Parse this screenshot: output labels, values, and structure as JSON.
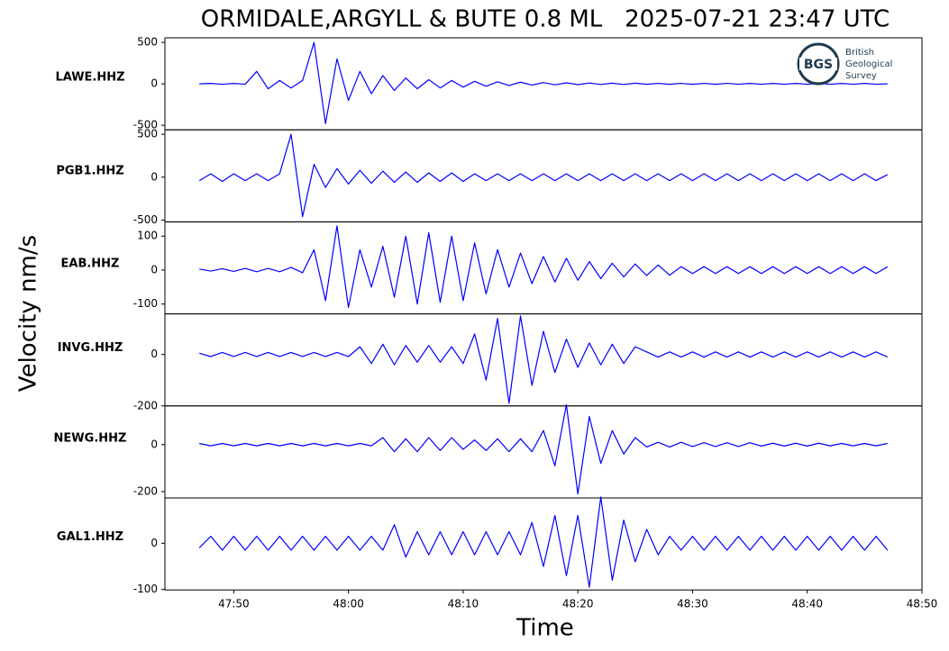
{
  "title": "ORMIDALE,ARGYLL & BUTE 0.8 ML   2025-07-21 23:47 UTC",
  "y_label": "Velocity nm/s",
  "x_label": "Time",
  "logo": {
    "mark": "BGS",
    "lines": [
      "British",
      "Geological",
      "Survey"
    ]
  },
  "chart_data": [
    {
      "type": "line",
      "x": [
        47,
        48,
        49,
        50,
        51,
        52,
        53,
        54,
        55,
        56,
        57,
        58,
        59,
        60,
        61,
        62,
        63,
        64,
        65,
        66,
        67,
        68,
        69,
        70,
        71,
        72,
        73,
        74,
        75,
        76,
        77,
        78,
        79,
        80,
        81,
        82,
        83,
        84,
        85,
        86,
        87,
        88,
        89,
        90,
        91,
        92,
        93,
        94,
        95,
        96,
        97,
        98,
        99,
        100,
        101,
        102,
        103,
        104,
        105,
        106,
        107
      ],
      "series": [
        {
          "name": "LAWE.HHZ",
          "color": "#0000ff",
          "values": [
            0,
            5,
            -5,
            5,
            -5,
            150,
            -60,
            40,
            -50,
            40,
            500,
            -480,
            300,
            -200,
            150,
            -120,
            100,
            -80,
            70,
            -60,
            50,
            -50,
            40,
            -40,
            30,
            -30,
            25,
            -20,
            20,
            -15,
            15,
            -12,
            12,
            -10,
            10,
            -8,
            8,
            -8,
            8,
            -6,
            6,
            -6,
            6,
            -6,
            6,
            -6,
            6,
            -5,
            5,
            -5,
            5,
            -5,
            5,
            -5,
            5,
            -5,
            5,
            -5,
            5,
            -5,
            0
          ]
        }
      ],
      "xlim": [
        44,
        110
      ],
      "ylim": [
        -555,
        555
      ],
      "yticks": [
        -500,
        0,
        500
      ]
    },
    {
      "type": "line",
      "x": [
        47,
        48,
        49,
        50,
        51,
        52,
        53,
        54,
        55,
        56,
        57,
        58,
        59,
        60,
        61,
        62,
        63,
        64,
        65,
        66,
        67,
        68,
        69,
        70,
        71,
        72,
        73,
        74,
        75,
        76,
        77,
        78,
        79,
        80,
        81,
        82,
        83,
        84,
        85,
        86,
        87,
        88,
        89,
        90,
        91,
        92,
        93,
        94,
        95,
        96,
        97,
        98,
        99,
        100,
        101,
        102,
        103,
        104,
        105,
        106,
        107
      ],
      "series": [
        {
          "name": "PGB1.HHZ",
          "color": "#0000ff",
          "values": [
            -40,
            40,
            -50,
            40,
            -40,
            40,
            -40,
            40,
            500,
            -460,
            150,
            -120,
            100,
            -80,
            80,
            -70,
            70,
            -60,
            60,
            -60,
            50,
            -50,
            50,
            -50,
            40,
            -40,
            40,
            -40,
            40,
            -40,
            40,
            -40,
            40,
            -40,
            40,
            -40,
            40,
            -40,
            40,
            -40,
            40,
            -40,
            40,
            -40,
            40,
            -40,
            40,
            -40,
            40,
            -40,
            40,
            -40,
            40,
            -40,
            40,
            -40,
            40,
            -40,
            40,
            -40,
            30
          ]
        }
      ],
      "xlim": [
        44,
        110
      ],
      "ylim": [
        -521,
        552
      ],
      "yticks": [
        -500,
        0,
        500
      ]
    },
    {
      "type": "line",
      "x": [
        47,
        48,
        49,
        50,
        51,
        52,
        53,
        54,
        55,
        56,
        57,
        58,
        59,
        60,
        61,
        62,
        63,
        64,
        65,
        66,
        67,
        68,
        69,
        70,
        71,
        72,
        73,
        74,
        75,
        76,
        77,
        78,
        79,
        80,
        81,
        82,
        83,
        84,
        85,
        86,
        87,
        88,
        89,
        90,
        91,
        92,
        93,
        94,
        95,
        96,
        97,
        98,
        99,
        100,
        101,
        102,
        103,
        104,
        105,
        106,
        107
      ],
      "series": [
        {
          "name": "EAB.HHZ",
          "color": "#0000ff",
          "values": [
            3,
            -3,
            4,
            -4,
            5,
            -5,
            5,
            -5,
            8,
            -8,
            60,
            -90,
            130,
            -110,
            60,
            -50,
            70,
            -80,
            100,
            -100,
            110,
            -95,
            100,
            -90,
            80,
            -70,
            60,
            -50,
            50,
            -40,
            40,
            -35,
            35,
            -30,
            25,
            -25,
            20,
            -20,
            18,
            -16,
            15,
            -15,
            10,
            -10,
            10,
            -10,
            10,
            -10,
            10,
            -10,
            10,
            -10,
            10,
            -10,
            10,
            -10,
            10,
            -10,
            10,
            -10,
            10
          ]
        }
      ],
      "xlim": [
        44,
        110
      ],
      "ylim": [
        -129,
        142
      ],
      "yticks": [
        -100,
        0,
        100
      ]
    },
    {
      "type": "line",
      "x": [
        47,
        48,
        49,
        50,
        51,
        52,
        53,
        54,
        55,
        56,
        57,
        58,
        59,
        60,
        61,
        62,
        63,
        64,
        65,
        66,
        67,
        68,
        69,
        70,
        71,
        72,
        73,
        74,
        75,
        76,
        77,
        78,
        79,
        80,
        81,
        82,
        83,
        84,
        85,
        86,
        87,
        88,
        89,
        90,
        91,
        92,
        93,
        94,
        95,
        96,
        97,
        98,
        99,
        100,
        101,
        102,
        103,
        104,
        105,
        106,
        107
      ],
      "series": [
        {
          "name": "INVG.HHZ",
          "color": "#0000ff",
          "values": [
            5,
            -8,
            8,
            -8,
            8,
            -8,
            8,
            -8,
            8,
            -8,
            8,
            -8,
            8,
            -8,
            30,
            -35,
            40,
            -40,
            35,
            -30,
            35,
            -30,
            30,
            -35,
            80,
            -100,
            140,
            -190,
            150,
            -120,
            90,
            -70,
            60,
            -50,
            45,
            -40,
            40,
            -35,
            30,
            10,
            -10,
            10,
            -10,
            10,
            -10,
            10,
            -10,
            10,
            -10,
            10,
            -10,
            10,
            -10,
            10,
            -10,
            10,
            -10,
            10,
            -10,
            10,
            -10
          ]
        }
      ],
      "xlim": [
        44,
        110
      ],
      "ylim": [
        -200,
        158
      ],
      "yticks": [
        -200,
        0
      ]
    },
    {
      "type": "line",
      "x": [
        47,
        48,
        49,
        50,
        51,
        52,
        53,
        54,
        55,
        56,
        57,
        58,
        59,
        60,
        61,
        62,
        63,
        64,
        65,
        66,
        67,
        68,
        69,
        70,
        71,
        72,
        73,
        74,
        75,
        76,
        77,
        78,
        79,
        80,
        81,
        82,
        83,
        84,
        85,
        86,
        87,
        88,
        89,
        90,
        91,
        92,
        93,
        94,
        95,
        96,
        97,
        98,
        99,
        100,
        101,
        102,
        103,
        104,
        105,
        106,
        107
      ],
      "series": [
        {
          "name": "NEWG.HHZ",
          "color": "#0000ff",
          "values": [
            5,
            -5,
            5,
            -5,
            5,
            -5,
            5,
            -5,
            5,
            -5,
            5,
            -5,
            5,
            -5,
            5,
            -5,
            30,
            -30,
            25,
            -30,
            30,
            -25,
            30,
            -20,
            20,
            -25,
            25,
            -30,
            25,
            -30,
            60,
            -90,
            170,
            -210,
            120,
            -80,
            60,
            -40,
            30,
            -10,
            10,
            -10,
            10,
            -8,
            8,
            -8,
            8,
            -8,
            8,
            -6,
            6,
            -6,
            6,
            -6,
            6,
            -5,
            5,
            -5,
            5,
            -5,
            5
          ]
        }
      ],
      "xlim": [
        44,
        110
      ],
      "ylim": [
        -227,
        165
      ],
      "yticks": [
        -200,
        0
      ]
    },
    {
      "type": "line",
      "x": [
        47,
        48,
        49,
        50,
        51,
        52,
        53,
        54,
        55,
        56,
        57,
        58,
        59,
        60,
        61,
        62,
        63,
        64,
        65,
        66,
        67,
        68,
        69,
        70,
        71,
        72,
        73,
        74,
        75,
        76,
        77,
        78,
        79,
        80,
        81,
        82,
        83,
        84,
        85,
        86,
        87,
        88,
        89,
        90,
        91,
        92,
        93,
        94,
        95,
        96,
        97,
        98,
        99,
        100,
        101,
        102,
        103,
        104,
        105,
        106,
        107
      ],
      "series": [
        {
          "name": "GAL1.HHZ",
          "color": "#0000ff",
          "values": [
            -10,
            15,
            -15,
            15,
            -15,
            15,
            -15,
            15,
            -15,
            15,
            -15,
            15,
            -15,
            15,
            -15,
            15,
            -15,
            40,
            -30,
            25,
            -25,
            25,
            -25,
            25,
            -25,
            25,
            -25,
            25,
            -25,
            45,
            -50,
            60,
            -70,
            60,
            -95,
            100,
            -80,
            50,
            -40,
            30,
            -25,
            15,
            -15,
            15,
            -15,
            15,
            -15,
            15,
            -15,
            15,
            -15,
            15,
            -15,
            15,
            -15,
            15,
            -15,
            15,
            -15,
            15,
            -15
          ]
        }
      ],
      "xlim": [
        44,
        110
      ],
      "ylim": [
        -101,
        98
      ],
      "yticks": [
        -100,
        0
      ],
      "xticks": [
        {
          "value": 50,
          "label": "47:50"
        },
        {
          "value": 60,
          "label": "48:00"
        },
        {
          "value": 70,
          "label": "48:10"
        },
        {
          "value": 80,
          "label": "48:20"
        },
        {
          "value": 90,
          "label": "48:30"
        },
        {
          "value": 100,
          "label": "48:40"
        },
        {
          "value": 110,
          "label": "48:50"
        }
      ]
    }
  ]
}
